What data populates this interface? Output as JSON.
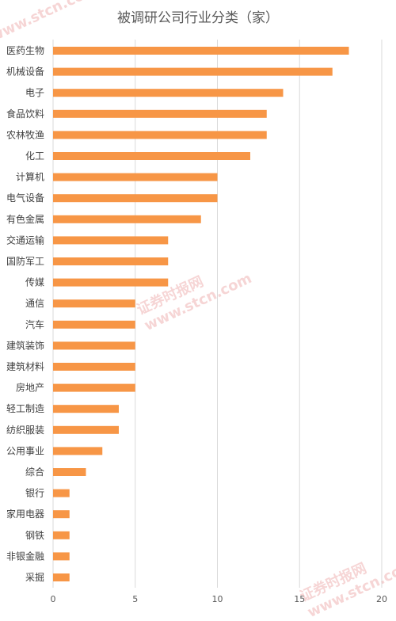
{
  "chart_data": {
    "type": "bar",
    "orientation": "horizontal",
    "title": "被调研公司行业分类（家）",
    "categories": [
      "医药生物",
      "机械设备",
      "电子",
      "食品饮料",
      "农林牧渔",
      "化工",
      "计算机",
      "电气设备",
      "有色金属",
      "交通运输",
      "国防军工",
      "传媒",
      "通信",
      "汽车",
      "建筑装饰",
      "建筑材料",
      "房地产",
      "轻工制造",
      "纺织服装",
      "公用事业",
      "综合",
      "银行",
      "家用电器",
      "钢铁",
      "非银金融",
      "采掘"
    ],
    "values": [
      18,
      17,
      14,
      13,
      13,
      12,
      10,
      10,
      9,
      7,
      7,
      7,
      5,
      5,
      5,
      5,
      5,
      4,
      4,
      3,
      2,
      1,
      1,
      1,
      1,
      1
    ],
    "xlim": [
      0,
      20
    ],
    "xticks": [
      0,
      5,
      10,
      15,
      20
    ],
    "grid": true,
    "legend": "none",
    "bar_color": "#F79646",
    "grid_color": "#D9D9D9"
  },
  "watermark": {
    "text_cn": "证券时报网",
    "text_url": "www.stcn.com"
  }
}
